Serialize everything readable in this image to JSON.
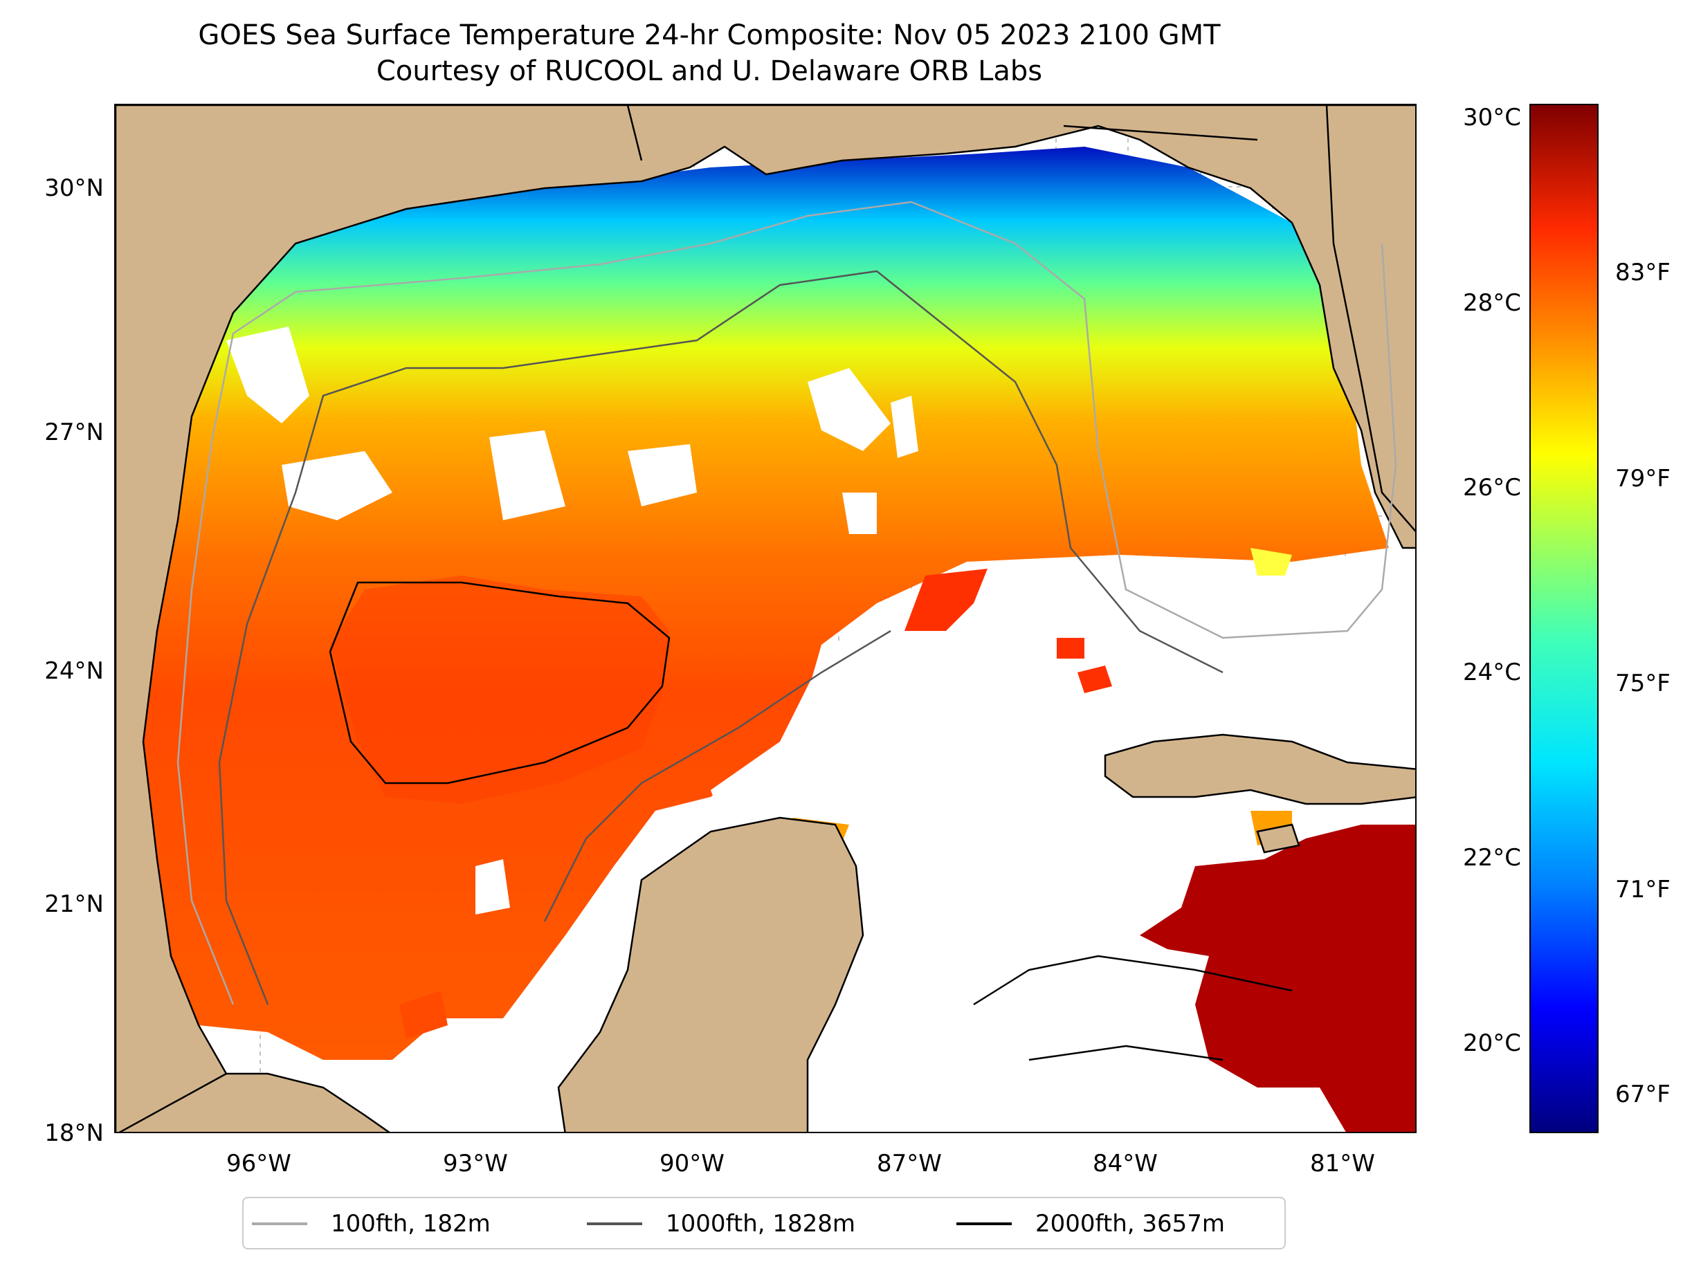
{
  "title_line1": "GOES Sea Surface Temperature 24-hr Composite: Nov 05 2023 2100 GMT",
  "title_line2": "Courtesy of RUCOOL and U. Delaware ORB Labs",
  "map": {
    "lat_ticks": [
      "30°N",
      "27°N",
      "24°N",
      "21°N",
      "18°N"
    ],
    "lon_ticks": [
      "96°W",
      "93°W",
      "90°W",
      "87°W",
      "84°W",
      "81°W"
    ],
    "land_color": "#d2b48c",
    "ocean_nodata_color": "#ffffff"
  },
  "colorbar": {
    "celsius_ticks": [
      "30°C",
      "28°C",
      "26°C",
      "24°C",
      "22°C",
      "20°C"
    ],
    "fahrenheit_ticks": [
      "83°F",
      "79°F",
      "75°F",
      "71°F",
      "67°F"
    ],
    "colormap": "jet"
  },
  "legend": [
    {
      "label": "100fth, 182m",
      "color": "#aaaaaa"
    },
    {
      "label": "1000fth, 1828m",
      "color": "#555555"
    },
    {
      "label": "2000fth, 3657m",
      "color": "#000000"
    }
  ]
}
